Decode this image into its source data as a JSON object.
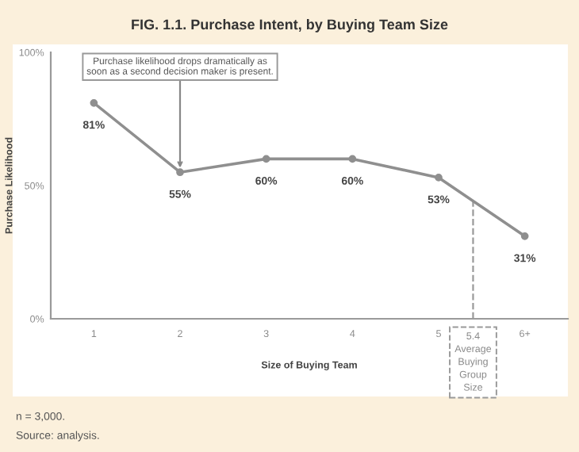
{
  "chart_data": {
    "type": "line",
    "title": "FIG. 1.1. Purchase Intent, by Buying Team Size",
    "xlabel": "Size of Buying Team",
    "ylabel": "Purchase Likelihood",
    "x": [
      1,
      2,
      3,
      4,
      5,
      6
    ],
    "series": [
      {
        "color": "#8f8f8f",
        "values": [
          81,
          55,
          60,
          60,
          53,
          31
        ],
        "value_labels": [
          "81%",
          "55%",
          "60%",
          "60%",
          "53%",
          "31%"
        ]
      }
    ],
    "xlim": [
      0.5,
      6.5
    ],
    "xticks": [
      1,
      2,
      3,
      4,
      5,
      {
        "value": 6,
        "label": "6+"
      }
    ],
    "ylim": [
      0,
      100
    ],
    "yticks": [
      {
        "value": 0,
        "label": "0%"
      },
      {
        "value": 50,
        "label": "50%"
      },
      {
        "value": 100,
        "label": "100%"
      }
    ],
    "grid": false,
    "legend": false,
    "marker": "circle",
    "line_style": "solid",
    "ref_lines": [
      {
        "axis": "x",
        "value": 5.4,
        "label": "5.4\nAverage\nBuying\nGroup\nSize",
        "color": "#9a9a9a",
        "line_style": "dashed"
      }
    ],
    "annotations": [
      {
        "text": "Purchase likelihood drops dramatically as\nsoon as a second decision maker is present.",
        "x": 2,
        "y": 55
      },
      "n = 3,000.",
      "Source: analysis."
    ]
  }
}
